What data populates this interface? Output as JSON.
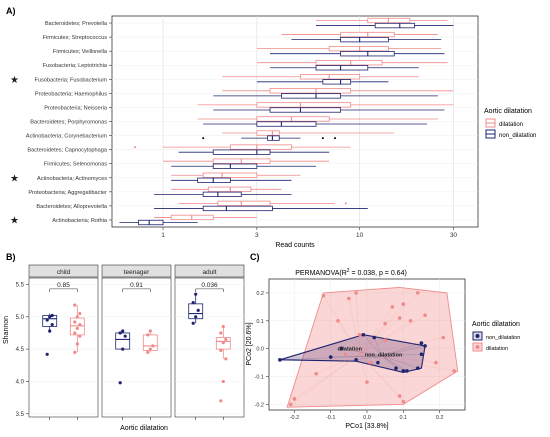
{
  "colors": {
    "dilatation": "#f08a8a",
    "non_dilatation": "#1f2470",
    "strip": "#e0e0e0",
    "panel_bg": "#ffffff"
  },
  "panel_labels": {
    "a": "A)",
    "b": "B)",
    "c": "C)"
  },
  "chart_data": [
    {
      "id": "A",
      "type": "boxplot-horizontal",
      "xlabel": "Read counts",
      "xscale": "log10",
      "xlim": [
        0.55,
        40
      ],
      "xticks": [
        1,
        3,
        10,
        30
      ],
      "xticklabels": [
        "1",
        "3",
        "10",
        "30"
      ],
      "legend": {
        "title": "Aortic dilatation",
        "position": "right",
        "entries": [
          "dilatation",
          "non_dilatation"
        ]
      },
      "starred": [
        "Fusobacteria; Fusobacterium",
        "Actinobacteria; Actinomyces",
        "Actinobacteria; Rothia"
      ],
      "star_glyph": "★",
      "taxa": [
        "Bacteroidetes; Prevotella",
        "Firmicutes; Streptococcus",
        "Firmicutes; Veillonella",
        "Fusobacteria; Leptotrichia",
        "Fusobacteria; Fusobacterium",
        "Proteobacteria; Haemophilus",
        "Proteobacteria; Neisseria",
        "Bacteroidetes; Porphyromonas",
        "Actinobacteria; Corynebacterium",
        "Bacteroidetes; Capnocytophaga",
        "Firmicutes; Selenomonas",
        "Actinobacteria; Actinomyces",
        "Proteobacteria; Aggregatibacter",
        "Bacteroidetes; Alloprevotella",
        "Actinobacteria; Rothia"
      ],
      "boxes": [
        {
          "dil": [
            6,
            11,
            14,
            18,
            28
          ],
          "non": [
            6,
            12,
            16,
            19,
            30
          ],
          "out_dil": [],
          "out_non": []
        },
        {
          "dil": [
            4,
            8,
            11,
            15,
            25
          ],
          "non": [
            4.5,
            8,
            10,
            14,
            26
          ],
          "out_dil": [],
          "out_non": []
        },
        {
          "dil": [
            3,
            7,
            10,
            14,
            26
          ],
          "non": [
            3.5,
            8,
            11,
            15,
            27
          ],
          "out_dil": [],
          "out_non": []
        },
        {
          "dil": [
            3,
            6,
            9,
            13,
            28
          ],
          "non": [
            3.5,
            6,
            8,
            11,
            20
          ],
          "out_dil": [],
          "out_non": []
        },
        {
          "dil": [
            2,
            5,
            7,
            10,
            20
          ],
          "non": [
            3,
            6.5,
            8,
            9,
            14
          ],
          "out_dil": [],
          "out_non": []
        },
        {
          "dil": [
            2,
            3.5,
            6,
            9,
            30
          ],
          "non": [
            1.8,
            4,
            6,
            8,
            25
          ],
          "out_dil": [],
          "out_non": []
        },
        {
          "dil": [
            1.5,
            3,
            5,
            9,
            30
          ],
          "non": [
            1.8,
            3.5,
            5,
            8,
            27
          ],
          "out_dil": [],
          "out_non": []
        },
        {
          "dil": [
            1.5,
            3,
            4.5,
            7,
            25
          ],
          "non": [
            1.6,
            3,
            4,
            6,
            22
          ],
          "out_dil": [],
          "out_non": []
        },
        {
          "dil": [
            2,
            3,
            3.6,
            3.9,
            15
          ],
          "non": [
            2.5,
            3.4,
            3.6,
            3.9,
            5
          ],
          "out_dil": [],
          "out_non": [
            1.6,
            6.5,
            7.5
          ]
        },
        {
          "dil": [
            1,
            2.2,
            3,
            4.5,
            9
          ],
          "non": [
            1.2,
            1.8,
            3,
            3.5,
            7
          ],
          "out_dil": [
            0.72
          ],
          "out_non": []
        },
        {
          "dil": [
            1,
            1.8,
            2.5,
            3.5,
            7
          ],
          "non": [
            1.1,
            1.8,
            2.2,
            3,
            6
          ],
          "out_dil": [],
          "out_non": []
        },
        {
          "dil": [
            1.1,
            1.6,
            2,
            3,
            5
          ],
          "non": [
            1.1,
            1.5,
            1.8,
            2.2,
            4.5
          ],
          "out_dil": [],
          "out_non": []
        },
        {
          "dil": [
            1.1,
            1.7,
            2.2,
            2.8,
            4
          ],
          "non": [
            0.9,
            1.6,
            1.9,
            2.5,
            4.5
          ],
          "out_dil": [],
          "out_non": []
        },
        {
          "dil": [
            1.2,
            1.9,
            2.5,
            3.5,
            7.5
          ],
          "non": [
            0.9,
            1.6,
            2.1,
            3.6,
            11
          ],
          "out_dil": [
            8.5
          ],
          "out_non": []
        },
        {
          "dil": [
            0.9,
            1.1,
            1.4,
            1.8,
            3
          ],
          "non": [
            0.6,
            0.75,
            0.85,
            1,
            1.5
          ],
          "out_dil": [],
          "out_non": []
        }
      ]
    },
    {
      "id": "B",
      "type": "boxplot-faceted",
      "ylabel": "Shannon",
      "xlabel": "Aortic dilatation",
      "ylim": [
        3.45,
        5.6
      ],
      "yticks": [
        3.5,
        4.0,
        4.5,
        5.0,
        5.5
      ],
      "yticklabels": [
        "3.5",
        "4.0",
        "4.5",
        "5.0",
        "5.5"
      ],
      "facets": [
        {
          "name": "child",
          "p": "0.85",
          "non": [
            4.75,
            4.85,
            4.97,
            5.02,
            5.05
          ],
          "dil": [
            4.45,
            4.72,
            4.86,
            4.98,
            5.18
          ],
          "pts_non": [
            4.42,
            4.78,
            4.88,
            4.95,
            5.0,
            5.02
          ],
          "pts_dil": [
            4.45,
            4.58,
            4.7,
            4.75,
            4.82,
            4.88,
            4.92,
            5.0,
            5.05,
            5.18
          ]
        },
        {
          "name": "teenager",
          "p": "0.91",
          "non": [
            4.5,
            4.5,
            4.65,
            4.75,
            4.78
          ],
          "dil": [
            4.45,
            4.48,
            4.55,
            4.72,
            4.78
          ],
          "pts_non": [
            3.98,
            4.5,
            4.7,
            4.75,
            4.78
          ],
          "pts_dil": [
            4.45,
            4.5,
            4.55,
            4.72,
            4.78
          ]
        },
        {
          "name": "adult",
          "p": "0.036",
          "non": [
            4.9,
            4.97,
            5.05,
            5.2,
            5.35
          ],
          "dil": [
            4.35,
            4.5,
            4.62,
            4.68,
            4.85
          ],
          "pts_non": [
            4.9,
            5.0,
            5.1,
            5.22,
            5.35
          ],
          "pts_dil": [
            3.7,
            4.0,
            4.35,
            4.48,
            4.6,
            4.65,
            4.75,
            4.85
          ]
        }
      ]
    },
    {
      "id": "C",
      "type": "scatter-pcoa",
      "title": "PERMANOVA(R",
      "title_sup": "2",
      "title_rest": " = 0.038, p = 0.64)",
      "xlabel": "PCo1 [33.8%]",
      "ylabel": "PCo2 [20.6%]",
      "xlim": [
        -0.27,
        0.27
      ],
      "ylim": [
        -0.22,
        0.25
      ],
      "xticks": [
        -0.2,
        -0.1,
        0.0,
        0.1,
        0.2
      ],
      "xticklabels": [
        "-0.2",
        "-0.1",
        "0.0",
        "0.1",
        "0.2"
      ],
      "yticks": [
        -0.2,
        -0.1,
        0.0,
        0.1,
        0.2
      ],
      "yticklabels": [
        "-0.2",
        "-0.1",
        "0.0",
        "0.1",
        "0.2"
      ],
      "legend": {
        "title": "Aortic dilatation",
        "position": "right",
        "entries": [
          "non_dilatation",
          "dilatation"
        ]
      },
      "centroid_labels": {
        "dil": "dilatation",
        "non": "non_dilatation"
      },
      "centroid_dil": [
        -0.02,
        -0.02
      ],
      "centroid_non": [
        0.04,
        -0.025
      ],
      "points_non": [
        [
          -0.24,
          -0.04
        ],
        [
          -0.1,
          -0.03
        ],
        [
          -0.07,
          0.0
        ],
        [
          -0.03,
          -0.04
        ],
        [
          -0.01,
          0.05
        ],
        [
          0.02,
          0.04
        ],
        [
          0.03,
          -0.05
        ],
        [
          0.08,
          -0.07
        ],
        [
          0.1,
          -0.08
        ],
        [
          0.11,
          -0.08
        ],
        [
          0.14,
          -0.07
        ],
        [
          0.15,
          -0.02
        ],
        [
          0.15,
          0.02
        ],
        [
          0.16,
          0.01
        ]
      ],
      "points_dil": [
        [
          -0.2,
          -0.18
        ],
        [
          -0.14,
          -0.09
        ],
        [
          -0.12,
          0.19
        ],
        [
          -0.08,
          0.1
        ],
        [
          -0.06,
          -0.02
        ],
        [
          -0.05,
          0.18
        ],
        [
          -0.03,
          0.2
        ],
        [
          -0.02,
          0.05
        ],
        [
          0.0,
          -0.12
        ],
        [
          0.01,
          -0.05
        ],
        [
          0.05,
          0.09
        ],
        [
          0.07,
          0.15
        ],
        [
          0.09,
          0.11
        ],
        [
          0.1,
          0.16
        ],
        [
          0.12,
          0.1
        ],
        [
          0.14,
          0.2
        ],
        [
          0.16,
          0.12
        ],
        [
          0.19,
          -0.05
        ],
        [
          0.21,
          0.04
        ],
        [
          0.24,
          -0.08
        ],
        [
          0.09,
          -0.17
        ],
        [
          0.1,
          -0.19
        ],
        [
          -0.21,
          -0.2
        ],
        [
          0.05,
          0.03
        ]
      ],
      "hull_dil": [
        [
          -0.22,
          -0.21
        ],
        [
          0.1,
          -0.2
        ],
        [
          0.25,
          -0.08
        ],
        [
          0.22,
          0.2
        ],
        [
          0.09,
          0.22
        ],
        [
          -0.12,
          0.2
        ]
      ],
      "hull_non": [
        [
          -0.24,
          -0.04
        ],
        [
          -0.01,
          0.05
        ],
        [
          0.16,
          0.01
        ],
        [
          0.15,
          -0.07
        ],
        [
          0.1,
          -0.085
        ],
        [
          -0.03,
          -0.045
        ]
      ]
    }
  ]
}
